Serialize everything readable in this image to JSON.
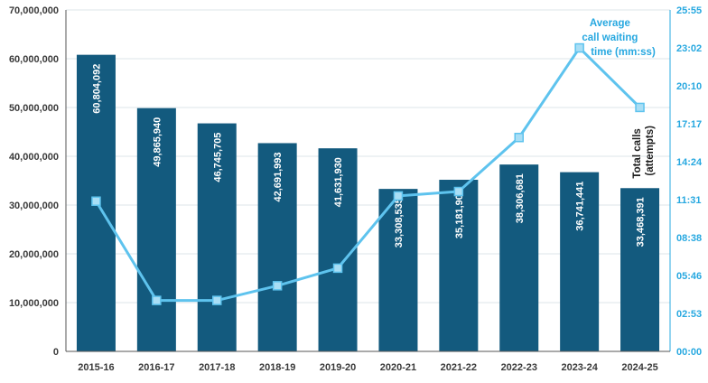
{
  "chart_data": {
    "type": "bar",
    "categories": [
      "2015-16",
      "2016-17",
      "2017-18",
      "2018-19",
      "2019-20",
      "2020-21",
      "2021-22",
      "2022-23",
      "2023-24",
      "2024-25"
    ],
    "series": [
      {
        "name": "Total calls (attempts)",
        "type": "bar",
        "axis": "left",
        "values": [
          60804092,
          49865940,
          46745705,
          42691993,
          41631930,
          33308535,
          35181908,
          38306681,
          36741441,
          33468391
        ],
        "labels": [
          "60,804,092",
          "49,865,940",
          "46,745,705",
          "42,691,993",
          "41,631,930",
          "33,308,535",
          "35,181,908",
          "38,306,681",
          "36,741,441",
          "33,468,391"
        ]
      },
      {
        "name": "Average call waiting time (mm:ss)",
        "type": "line",
        "axis": "right",
        "values": [
          "11:24",
          "03:52",
          "03:52",
          "04:59",
          "06:19",
          "11:48",
          "12:08",
          "16:14",
          "23:02",
          "18:31"
        ]
      }
    ],
    "y_left": {
      "ylim": [
        0,
        70000000
      ],
      "ticks": [
        "0",
        "10,000,000",
        "20,000,000",
        "30,000,000",
        "40,000,000",
        "50,000,000",
        "60,000,000",
        "70,000,000"
      ]
    },
    "y_right": {
      "ylim": [
        "00:00",
        "25:55"
      ],
      "ticks": [
        "00:00",
        "02:53",
        "05:46",
        "08:38",
        "11:31",
        "14:24",
        "17:17",
        "20:10",
        "23:02",
        "25:55"
      ]
    },
    "annotations": {
      "line_label_lines": [
        "Average",
        "call waiting",
        "time (mm:ss)"
      ],
      "bar_label_lines": [
        "Total calls",
        "(attempts)"
      ]
    },
    "grid": true,
    "colors": {
      "bar": "#135a7e",
      "line": "#5ec3ee",
      "marker_fill": "#a9def5",
      "right_axis": "#27a8e0",
      "grid": "#dde4ea",
      "axis": "#555555"
    }
  }
}
